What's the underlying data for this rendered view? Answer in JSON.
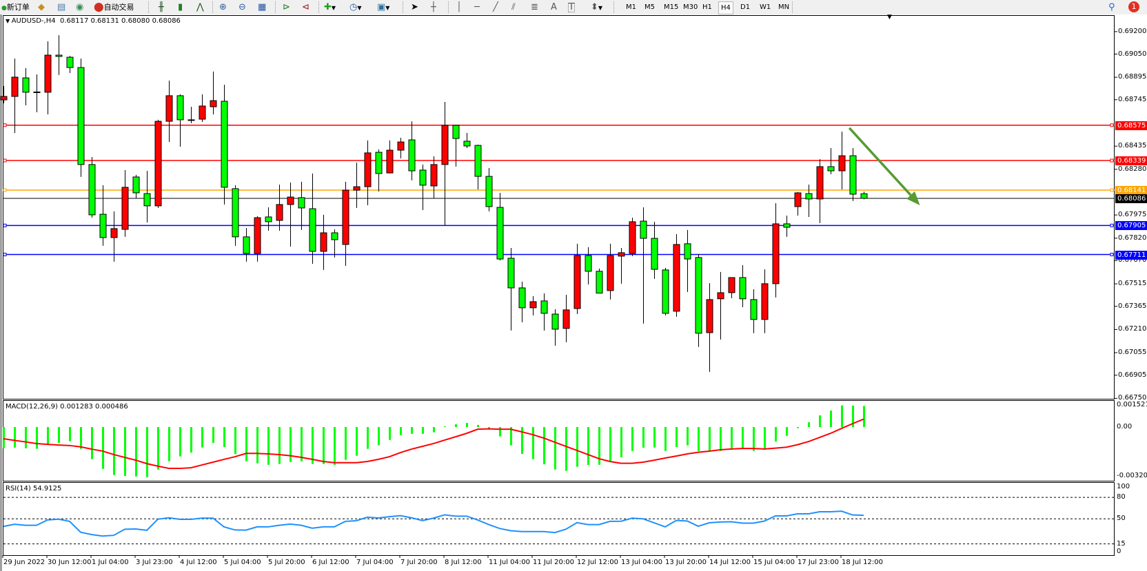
{
  "toolbar": {
    "new_order_label": "新订单",
    "autotrading_label": "自动交易",
    "timeframes": [
      "M1",
      "M5",
      "M15",
      "M30",
      "H1",
      "H4",
      "D1",
      "W1",
      "MN"
    ],
    "selected_timeframe": "H4",
    "notification_count": "1",
    "icons": [
      "new-order-icon",
      "market-watch-icon",
      "history-icon",
      "signals-icon",
      "autotrading-icon",
      "bar-chart-icon",
      "candlestick-icon",
      "line-chart-icon",
      "zoom-in-icon",
      "zoom-out-icon",
      "tile-windows-icon",
      "auto-scroll-icon",
      "chart-shift-icon",
      "indicators-icon",
      "periods-icon",
      "templates-icon",
      "cursor-icon",
      "crosshair-icon",
      "vertical-line-icon",
      "horizontal-line-icon",
      "trendline-icon",
      "channel-icon",
      "fibonacci-icon",
      "text-icon",
      "text-label-icon",
      "arrows-icon",
      "search-icon",
      "notification-icon"
    ]
  },
  "chart": {
    "symbol_label": "AUDUSD-,H4",
    "ohlc_label": "0.68117 0.68131 0.68080 0.68086",
    "macd_label": "MACD(12,26,9) 0.001283 0.000486",
    "rsi_label": "RSI(14) 54.9125"
  },
  "chart_data": {
    "type": "candlestick",
    "symbol": "AUDUSD-",
    "timeframe": "H4",
    "bull_color": "#ff0000",
    "bear_color": "#00ff00",
    "ylim": [
      0.66747,
      0.6931
    ],
    "price_ticks": [
      "0.69200",
      "0.69050",
      "0.68895",
      "0.68745",
      "0.68435",
      "0.68280",
      "0.67975",
      "0.67820",
      "0.67670",
      "0.67515",
      "0.67365",
      "0.67210",
      "0.67055",
      "0.66905",
      "0.66750"
    ],
    "x_tick_labels": [
      "29 Jun 2022",
      "30 Jun 12:00",
      "1 Jul 04:00",
      "3 Jul 23:00",
      "4 Jul 12:00",
      "5 Jul 04:00",
      "5 Jul 20:00",
      "6 Jul 12:00",
      "7 Jul 04:00",
      "7 Jul 20:00",
      "8 Jul 12:00",
      "11 Jul 04:00",
      "11 Jul 20:00",
      "12 Jul 12:00",
      "13 Jul 04:00",
      "13 Jul 20:00",
      "14 Jul 12:00",
      "15 Jul 04:00",
      "17 Jul 23:00",
      "18 Jul 12:00"
    ],
    "ohlc": [
      [
        0.68744,
        0.68836,
        0.68721,
        0.68767
      ],
      [
        0.68767,
        0.6902,
        0.68523,
        0.68896
      ],
      [
        0.68891,
        0.68956,
        0.68707,
        0.68795
      ],
      [
        0.68795,
        0.68914,
        0.68661,
        0.68797
      ],
      [
        0.68795,
        0.69135,
        0.68647,
        0.69043
      ],
      [
        0.69043,
        0.69176,
        0.6891,
        0.69034
      ],
      [
        0.69029,
        0.69038,
        0.68923,
        0.6896
      ],
      [
        0.6896,
        0.6902,
        0.68229,
        0.68312
      ],
      [
        0.68312,
        0.68362,
        0.67957,
        0.67976
      ],
      [
        0.6798,
        0.68174,
        0.67769,
        0.67824
      ],
      [
        0.67824,
        0.67999,
        0.67663,
        0.67884
      ],
      [
        0.67879,
        0.68275,
        0.67829,
        0.6816
      ],
      [
        0.68229,
        0.68243,
        0.68086,
        0.68123
      ],
      [
        0.68118,
        0.6827,
        0.67925,
        0.68036
      ],
      [
        0.68036,
        0.68611,
        0.68022,
        0.68601
      ],
      [
        0.68601,
        0.68873,
        0.68463,
        0.68772
      ],
      [
        0.68772,
        0.68781,
        0.68431,
        0.68611
      ],
      [
        0.68611,
        0.68698,
        0.68588,
        0.68609
      ],
      [
        0.68615,
        0.68781,
        0.68597,
        0.68703
      ],
      [
        0.68698,
        0.68933,
        0.68647,
        0.68739
      ],
      [
        0.68735,
        0.68845,
        0.68045,
        0.6816
      ],
      [
        0.68151,
        0.68174,
        0.67769,
        0.67829
      ],
      [
        0.67829,
        0.67888,
        0.67663,
        0.67718
      ],
      [
        0.67718,
        0.67967,
        0.67663,
        0.67957
      ],
      [
        0.67962,
        0.68026,
        0.6787,
        0.6793
      ],
      [
        0.67939,
        0.68178,
        0.6787,
        0.68045
      ],
      [
        0.68045,
        0.68192,
        0.67764,
        0.68095
      ],
      [
        0.68091,
        0.68197,
        0.67875,
        0.68022
      ],
      [
        0.68017,
        0.68252,
        0.67649,
        0.67732
      ],
      [
        0.67732,
        0.67976,
        0.67608,
        0.67856
      ],
      [
        0.67856,
        0.67879,
        0.67691,
        0.6781
      ],
      [
        0.67778,
        0.68197,
        0.67635,
        0.68141
      ],
      [
        0.68141,
        0.68325,
        0.68022,
        0.68164
      ],
      [
        0.68164,
        0.68473,
        0.6804,
        0.6839
      ],
      [
        0.68394,
        0.68413,
        0.68132,
        0.68252
      ],
      [
        0.68256,
        0.68473,
        0.68252,
        0.68408
      ],
      [
        0.68408,
        0.68491,
        0.68353,
        0.68463
      ],
      [
        0.68477,
        0.68601,
        0.68206,
        0.6827
      ],
      [
        0.68275,
        0.68312,
        0.68008,
        0.68174
      ],
      [
        0.68169,
        0.68367,
        0.68086,
        0.68312
      ],
      [
        0.68312,
        0.6873,
        0.67907,
        0.68574
      ],
      [
        0.68574,
        0.68574,
        0.68298,
        0.68486
      ],
      [
        0.68468,
        0.68523,
        0.68422,
        0.68436
      ],
      [
        0.6844,
        0.68445,
        0.68146,
        0.68233
      ],
      [
        0.68233,
        0.68289,
        0.67999,
        0.68031
      ],
      [
        0.68026,
        0.68123,
        0.67672,
        0.67681
      ],
      [
        0.67686,
        0.67755,
        0.67203,
        0.67488
      ],
      [
        0.67488,
        0.6753,
        0.67258,
        0.67355
      ],
      [
        0.67355,
        0.67433,
        0.67304,
        0.67396
      ],
      [
        0.67401,
        0.67451,
        0.67203,
        0.67318
      ],
      [
        0.67313,
        0.67346,
        0.67102,
        0.67212
      ],
      [
        0.67217,
        0.67442,
        0.67125,
        0.67341
      ],
      [
        0.6735,
        0.67783,
        0.67313,
        0.67704
      ],
      [
        0.67704,
        0.6776,
        0.67511,
        0.67599
      ],
      [
        0.67599,
        0.67617,
        0.67451,
        0.67453
      ],
      [
        0.6747,
        0.67783,
        0.6741,
        0.67704
      ],
      [
        0.677,
        0.67755,
        0.67516,
        0.67723
      ],
      [
        0.67718,
        0.67957,
        0.677,
        0.6793
      ],
      [
        0.67934,
        0.68026,
        0.67249,
        0.67819
      ],
      [
        0.67819,
        0.6793,
        0.67548,
        0.67612
      ],
      [
        0.67608,
        0.67622,
        0.67304,
        0.67318
      ],
      [
        0.67332,
        0.67847,
        0.67295,
        0.67778
      ],
      [
        0.67783,
        0.67875,
        0.67461,
        0.67681
      ],
      [
        0.67691,
        0.67714,
        0.67093,
        0.67185
      ],
      [
        0.67189,
        0.6752,
        0.66927,
        0.6741
      ],
      [
        0.67415,
        0.67594,
        0.67143,
        0.67456
      ],
      [
        0.67456,
        0.67557,
        0.67419,
        0.67557
      ],
      [
        0.67557,
        0.6764,
        0.67359,
        0.67415
      ],
      [
        0.6741,
        0.67479,
        0.67185,
        0.67277
      ],
      [
        0.67277,
        0.67612,
        0.67185,
        0.67516
      ],
      [
        0.67516,
        0.68054,
        0.67424,
        0.67916
      ],
      [
        0.67916,
        0.67971,
        0.67829,
        0.67893
      ],
      [
        0.68031,
        0.68128,
        0.67971,
        0.68123
      ],
      [
        0.68118,
        0.68178,
        0.67962,
        0.68082
      ],
      [
        0.68082,
        0.68348,
        0.67921,
        0.68298
      ],
      [
        0.68298,
        0.68422,
        0.68247,
        0.6827
      ],
      [
        0.6827,
        0.68532,
        0.68146,
        0.68371
      ],
      [
        0.68371,
        0.68422,
        0.68068,
        0.68114
      ],
      [
        0.68117,
        0.68131,
        0.6808,
        0.68086
      ]
    ],
    "levels": [
      {
        "price": 0.68575,
        "label": "0.68575",
        "color": "#ff0000"
      },
      {
        "price": 0.68339,
        "label": "0.68339",
        "color": "#ff0000"
      },
      {
        "price": 0.68141,
        "label": "0.68141",
        "color": "#ffa500"
      },
      {
        "price": 0.68086,
        "label": "0.68086",
        "color": "#000000"
      },
      {
        "price": 0.67905,
        "label": "0.67905",
        "color": "#0000ff"
      },
      {
        "price": 0.67711,
        "label": "0.67711",
        "color": "#0000ff"
      }
    ],
    "arrow": {
      "color": "#559b32",
      "from_bar": 76.7,
      "from_price": 0.68556,
      "to_bar": 83.1,
      "to_price": 0.6804
    },
    "macd": {
      "ylim": [
        -0.00326,
        0.00159
      ],
      "ticks": [
        "0.001521",
        "0.00",
        "-0.003205"
      ],
      "tick_values": [
        0.001521,
        0,
        -0.003205
      ],
      "hist_color": "#00ff00",
      "signal_color": "#ff0000",
      "histogram": [
        -0.00128,
        -0.00125,
        -0.00129,
        -0.00132,
        -0.00107,
        -0.00096,
        -0.00086,
        -0.00132,
        -0.00195,
        -0.00254,
        -0.00291,
        -0.00297,
        -0.003,
        -0.00304,
        -0.00258,
        -0.00208,
        -0.00178,
        -0.00155,
        -0.00124,
        -0.00096,
        -0.00121,
        -0.00164,
        -0.00208,
        -0.0022,
        -0.00229,
        -0.00224,
        -0.00212,
        -0.00208,
        -0.00224,
        -0.00224,
        -0.00229,
        -0.00199,
        -0.00174,
        -0.00132,
        -0.00111,
        -0.00078,
        -0.00049,
        -0.00041,
        -0.00041,
        -0.00032,
        4e-05,
        0.00017,
        0.00025,
        0.00013,
        -8e-05,
        -0.00057,
        -0.00111,
        -0.00163,
        -0.00195,
        -0.00226,
        -0.00258,
        -0.00266,
        -0.00241,
        -0.0023,
        -0.00229,
        -0.00205,
        -0.00183,
        -0.00145,
        -0.00125,
        -0.00124,
        -0.00145,
        -0.00121,
        -0.00111,
        -0.00145,
        -0.00145,
        -0.00145,
        -0.0013,
        -0.0013,
        -0.00145,
        -0.0013,
        -0.00088,
        -0.00053,
        -7e-05,
        0.00029,
        0.00071,
        0.001,
        0.00131,
        0.0013,
        0.001283
      ],
      "signal": [
        -0.00071,
        -0.00081,
        -0.0009,
        -0.001,
        -0.00105,
        -0.00109,
        -0.00112,
        -0.0012,
        -0.00134,
        -0.00146,
        -0.00167,
        -0.00184,
        -0.00201,
        -0.00222,
        -0.00237,
        -0.00251,
        -0.00251,
        -0.00247,
        -0.0023,
        -0.00213,
        -0.00196,
        -0.0018,
        -0.0016,
        -0.0016,
        -0.00163,
        -0.00167,
        -0.00174,
        -0.00184,
        -0.00196,
        -0.00209,
        -0.00216,
        -0.00216,
        -0.00216,
        -0.00209,
        -0.00196,
        -0.0018,
        -0.00155,
        -0.00134,
        -0.00117,
        -0.001,
        -0.00079,
        -0.00059,
        -0.00038,
        -0.00013,
        -0.00011,
        -0.00013,
        -0.00013,
        -0.00029,
        -0.00046,
        -0.00067,
        -0.00092,
        -0.00117,
        -0.00142,
        -0.00167,
        -0.00192,
        -0.00209,
        -0.0022,
        -0.0022,
        -0.00213,
        -0.00201,
        -0.00188,
        -0.00176,
        -0.00163,
        -0.00153,
        -0.00146,
        -0.00138,
        -0.00133,
        -0.0013,
        -0.0013,
        -0.00133,
        -0.00128,
        -0.00122,
        -0.00107,
        -0.00088,
        -0.00063,
        -0.00038,
        -8e-05,
        0.00021,
        0.000486
      ]
    },
    "rsi": {
      "ylim": [
        -0.7,
        100.3
      ],
      "ticks": [
        "100",
        "80",
        "50",
        "15",
        "0"
      ],
      "tick_values": [
        100,
        80,
        50,
        15,
        0
      ],
      "levels": [
        80,
        50,
        15
      ],
      "color": "#1e90ff",
      "values": [
        39.5,
        42.5,
        41,
        41,
        48.5,
        49.6,
        46.5,
        31.3,
        28,
        26,
        27,
        35.5,
        35.8,
        34,
        49.5,
        51.5,
        49.3,
        49.3,
        51,
        51,
        38.8,
        34.5,
        34.3,
        38.8,
        38.8,
        41,
        42.7,
        41,
        37,
        38.8,
        38.8,
        46.5,
        47.4,
        52.3,
        51.2,
        53,
        54.5,
        51.5,
        47.6,
        51,
        55.6,
        53.8,
        53.8,
        48.4,
        42,
        36.5,
        33.5,
        32.3,
        32.3,
        32.3,
        30.8,
        35.5,
        44.7,
        42,
        42,
        46.5,
        46.7,
        51,
        50,
        44.5,
        38.8,
        47.8,
        47,
        39.7,
        44.5,
        45.6,
        46,
        44,
        44,
        46.9,
        54.1,
        54.1,
        57,
        57,
        59.9,
        59.9,
        60.7,
        55.4,
        54.9125
      ]
    }
  }
}
